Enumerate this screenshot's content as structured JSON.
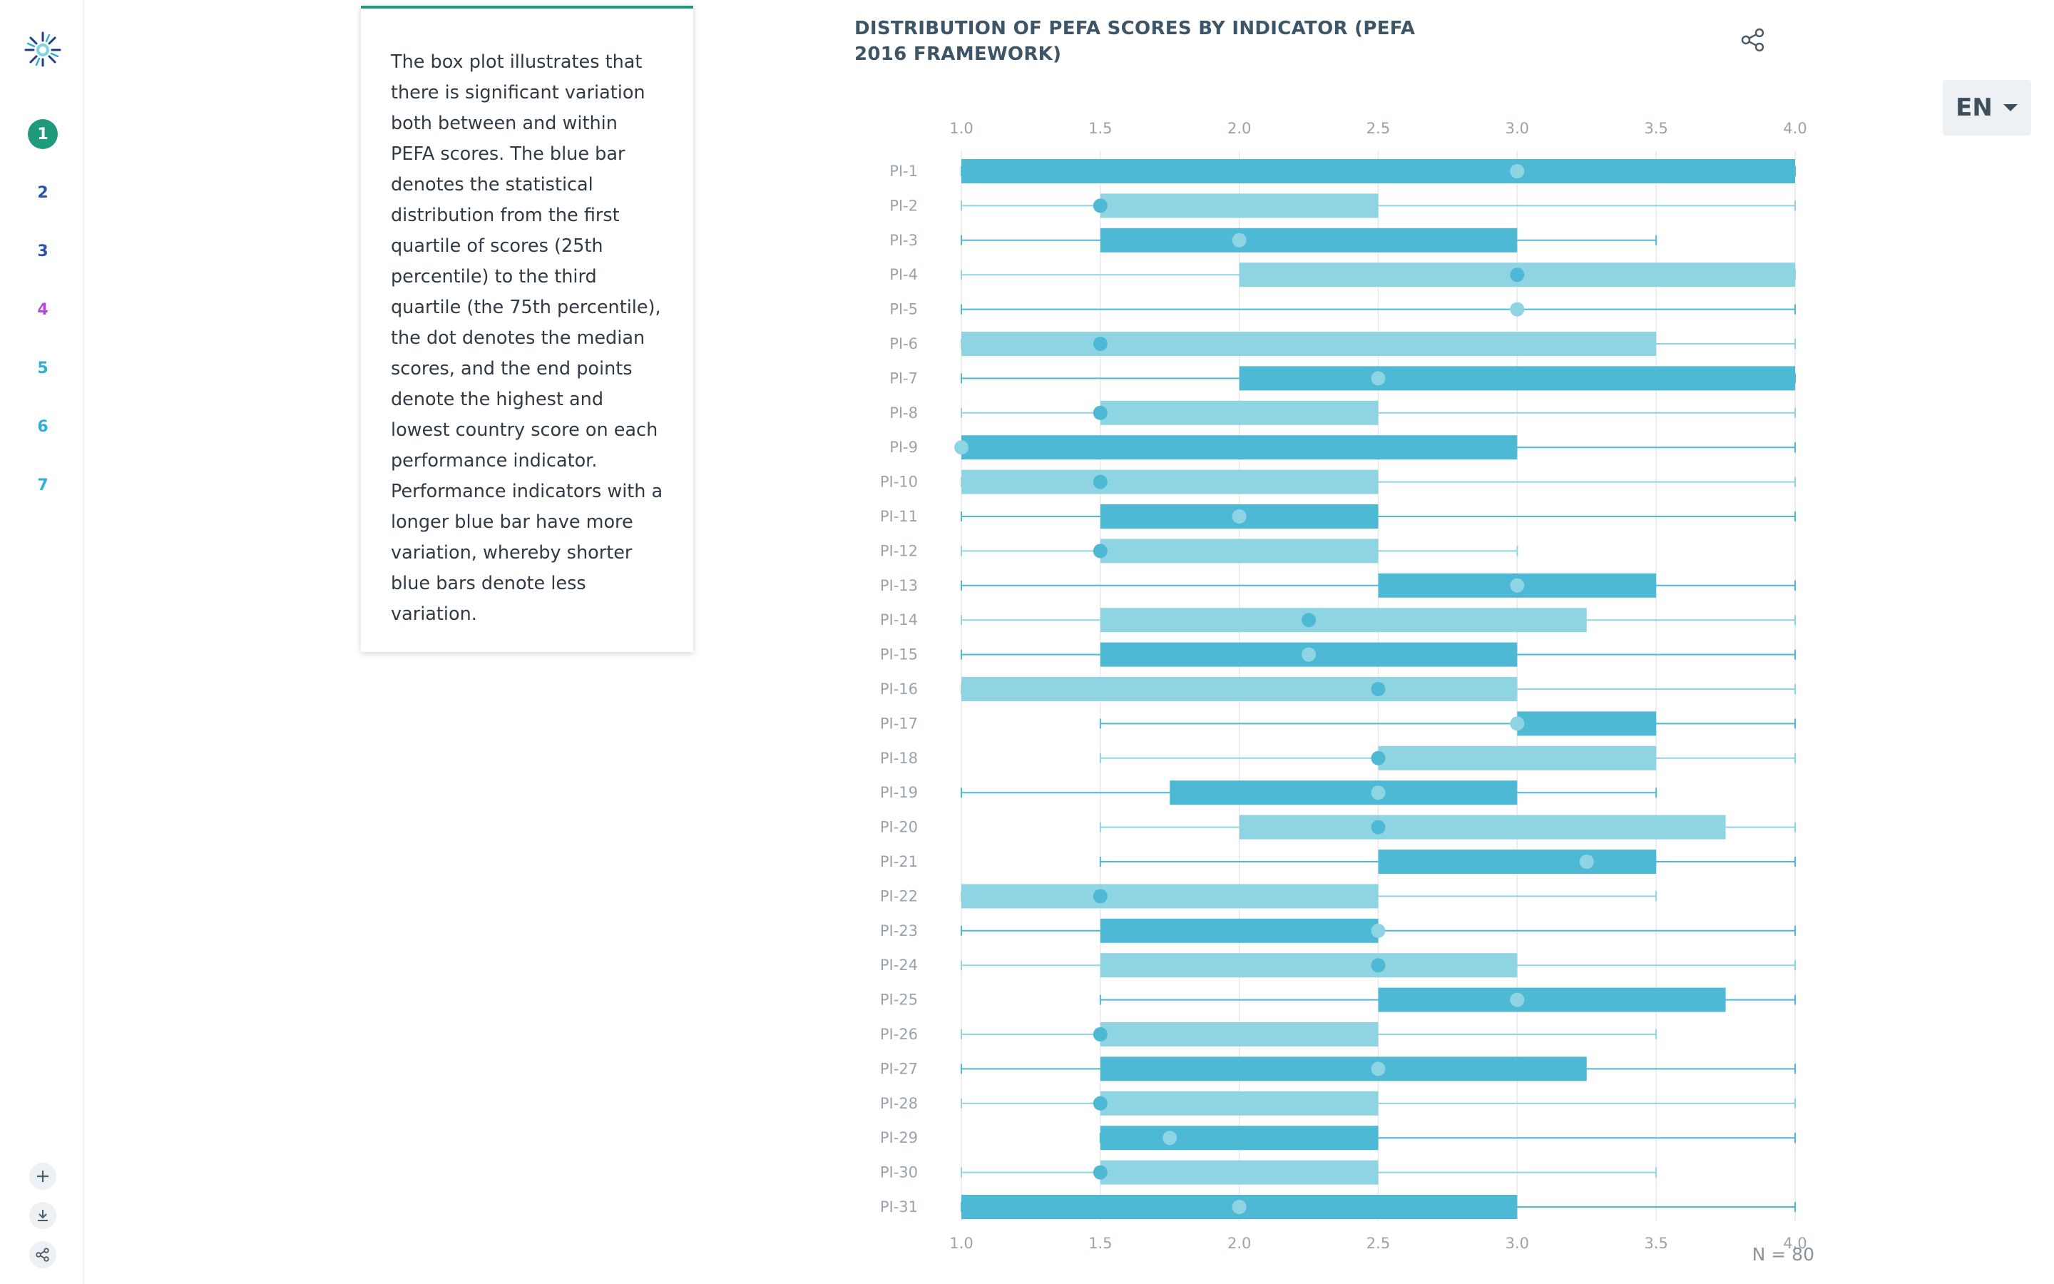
{
  "sidebar": {
    "items": [
      {
        "label": "1",
        "color": "#1f9b7b",
        "active": true
      },
      {
        "label": "2",
        "color": "#2a56a8",
        "active": false
      },
      {
        "label": "3",
        "color": "#2a56a8",
        "active": false
      },
      {
        "label": "4",
        "color": "#b34ad9",
        "active": false
      },
      {
        "label": "5",
        "color": "#2fb0d4",
        "active": false
      },
      {
        "label": "6",
        "color": "#2fb0d4",
        "active": false
      },
      {
        "label": "7",
        "color": "#2fb0d4",
        "active": false
      }
    ],
    "tools": [
      {
        "icon": "plus-icon"
      },
      {
        "icon": "download-icon"
      },
      {
        "icon": "share-icon"
      }
    ]
  },
  "description": "The box plot illustrates that there is significant variation both between and within PEFA scores. The blue bar denotes the statistical distribution from the first quartile of scores (25th percentile) to the third quartile (the 75th percentile), the dot denotes the median scores, and the end points denote the highest and lowest country score on each performance indicator. Performance indicators with a longer blue bar have more variation, whereby shorter blue bars denote less variation.",
  "language": {
    "label": "EN"
  },
  "colors": {
    "dark": "#4db9d4",
    "light": "#8fd4e3",
    "accent": "#1f9b7b",
    "title": "#3d5566"
  },
  "chart_data": {
    "type": "boxplot",
    "title": "DISTRIBUTION OF PEFA SCORES BY INDICATOR (PEFA 2016 FRAMEWORK)",
    "xlim": [
      1.0,
      4.0
    ],
    "ticks": [
      "1.0",
      "1.5",
      "2.0",
      "2.5",
      "3.0",
      "3.5",
      "4.0"
    ],
    "note": "N = 80",
    "grid": true,
    "rows": [
      {
        "name": "PI-1",
        "min": 1.0,
        "q1": 1.0,
        "median": 3.0,
        "q3": 4.0,
        "max": 4.0
      },
      {
        "name": "PI-2",
        "min": 1.0,
        "q1": 1.5,
        "median": 1.5,
        "q3": 2.5,
        "max": 4.0
      },
      {
        "name": "PI-3",
        "min": 1.0,
        "q1": 1.5,
        "median": 2.0,
        "q3": 3.0,
        "max": 3.5
      },
      {
        "name": "PI-4",
        "min": 1.0,
        "q1": 2.0,
        "median": 3.0,
        "q3": 4.0,
        "max": 4.0
      },
      {
        "name": "PI-5",
        "min": 1.0,
        "q1": 3.0,
        "median": 3.0,
        "q3": 3.0,
        "max": 4.0
      },
      {
        "name": "PI-6",
        "min": 1.0,
        "q1": 1.0,
        "median": 1.5,
        "q3": 3.5,
        "max": 4.0
      },
      {
        "name": "PI-7",
        "min": 1.0,
        "q1": 2.0,
        "median": 2.5,
        "q3": 4.0,
        "max": 4.0
      },
      {
        "name": "PI-8",
        "min": 1.0,
        "q1": 1.5,
        "median": 1.5,
        "q3": 2.5,
        "max": 4.0
      },
      {
        "name": "PI-9",
        "min": 1.0,
        "q1": 1.0,
        "median": 1.0,
        "q3": 3.0,
        "max": 4.0
      },
      {
        "name": "PI-10",
        "min": 1.0,
        "q1": 1.0,
        "median": 1.5,
        "q3": 2.5,
        "max": 4.0
      },
      {
        "name": "PI-11",
        "min": 1.0,
        "q1": 1.5,
        "median": 2.0,
        "q3": 2.5,
        "max": 4.0
      },
      {
        "name": "PI-12",
        "min": 1.0,
        "q1": 1.5,
        "median": 1.5,
        "q3": 2.5,
        "max": 3.0
      },
      {
        "name": "PI-13",
        "min": 1.0,
        "q1": 2.5,
        "median": 3.0,
        "q3": 3.5,
        "max": 4.0
      },
      {
        "name": "PI-14",
        "min": 1.0,
        "q1": 1.5,
        "median": 2.25,
        "q3": 3.25,
        "max": 4.0
      },
      {
        "name": "PI-15",
        "min": 1.0,
        "q1": 1.5,
        "median": 2.25,
        "q3": 3.0,
        "max": 4.0
      },
      {
        "name": "PI-16",
        "min": 1.0,
        "q1": 1.0,
        "median": 2.5,
        "q3": 3.0,
        "max": 4.0
      },
      {
        "name": "PI-17",
        "min": 1.5,
        "q1": 3.0,
        "median": 3.0,
        "q3": 3.5,
        "max": 4.0
      },
      {
        "name": "PI-18",
        "min": 1.5,
        "q1": 2.5,
        "median": 2.5,
        "q3": 3.5,
        "max": 4.0
      },
      {
        "name": "PI-19",
        "min": 1.0,
        "q1": 1.75,
        "median": 2.5,
        "q3": 3.0,
        "max": 3.5
      },
      {
        "name": "PI-20",
        "min": 1.5,
        "q1": 2.0,
        "median": 2.5,
        "q3": 3.75,
        "max": 4.0
      },
      {
        "name": "PI-21",
        "min": 1.5,
        "q1": 2.5,
        "median": 3.25,
        "q3": 3.5,
        "max": 4.0
      },
      {
        "name": "PI-22",
        "min": 1.0,
        "q1": 1.0,
        "median": 1.5,
        "q3": 2.5,
        "max": 3.5
      },
      {
        "name": "PI-23",
        "min": 1.0,
        "q1": 1.5,
        "median": 2.5,
        "q3": 2.5,
        "max": 4.0
      },
      {
        "name": "PI-24",
        "min": 1.0,
        "q1": 1.5,
        "median": 2.5,
        "q3": 3.0,
        "max": 4.0
      },
      {
        "name": "PI-25",
        "min": 1.5,
        "q1": 2.5,
        "median": 3.0,
        "q3": 3.75,
        "max": 4.0
      },
      {
        "name": "PI-26",
        "min": 1.0,
        "q1": 1.5,
        "median": 1.5,
        "q3": 2.5,
        "max": 3.5
      },
      {
        "name": "PI-27",
        "min": 1.0,
        "q1": 1.5,
        "median": 2.5,
        "q3": 3.25,
        "max": 4.0
      },
      {
        "name": "PI-28",
        "min": 1.0,
        "q1": 1.5,
        "median": 1.5,
        "q3": 2.5,
        "max": 4.0
      },
      {
        "name": "PI-29",
        "min": 1.5,
        "q1": 1.5,
        "median": 1.75,
        "q3": 2.5,
        "max": 4.0
      },
      {
        "name": "PI-30",
        "min": 1.0,
        "q1": 1.5,
        "median": 1.5,
        "q3": 2.5,
        "max": 3.5
      },
      {
        "name": "PI-31",
        "min": 1.0,
        "q1": 1.0,
        "median": 2.0,
        "q3": 3.0,
        "max": 4.0
      }
    ]
  }
}
